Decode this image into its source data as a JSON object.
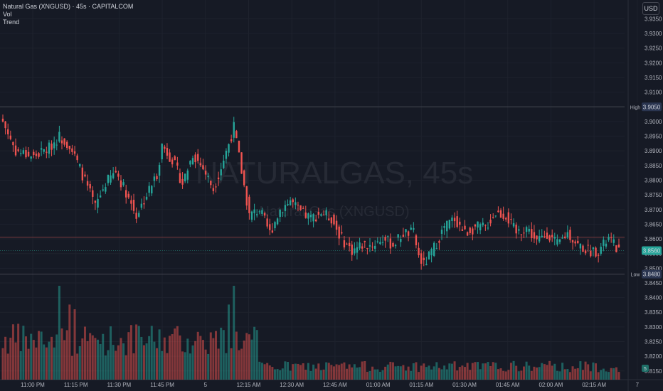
{
  "legend": {
    "symbol": "Natural Gas (XNGUSD) · 45s · CAPITALCOM",
    "vol": "Vol",
    "trend": "Trend"
  },
  "currency_button": "USD",
  "watermark": {
    "name": "NATURALGAS, 45s",
    "sub": "Natural Gas (XNGUSD)"
  },
  "colors": {
    "background": "#161a25",
    "up": "#26a69a",
    "down": "#ef5350",
    "grid": "#1e222d",
    "text": "#b2b5be"
  },
  "chart_data": {
    "type": "candlestick",
    "y_ticks": [
      "3.9350",
      "3.9300",
      "3.9250",
      "3.9200",
      "3.9150",
      "3.9100",
      "3.9050",
      "3.9000",
      "3.8950",
      "3.8900",
      "3.8850",
      "3.8800",
      "3.8750",
      "3.8700",
      "3.8650",
      "3.8600",
      "3.8550",
      "3.8500",
      "3.8450",
      "3.8400",
      "3.8350",
      "3.8300",
      "3.8250",
      "3.8200",
      "3.8150"
    ],
    "ylim": [
      3.8135,
      3.9385
    ],
    "x_ticks": [
      "11:00 PM",
      "11:15 PM",
      "11:30 PM",
      "11:45 PM",
      "5",
      "12:15 AM",
      "12:30 AM",
      "12:45 AM",
      "01:00 AM",
      "01:15 AM",
      "01:30 AM",
      "01:45 AM",
      "02:00 AM",
      "02:15 AM",
      "7"
    ],
    "high": {
      "label": "High",
      "value": "3.9050"
    },
    "low": {
      "label": "Low",
      "value": "3.8480"
    },
    "last": {
      "value": "3.8560"
    },
    "volume_badge": "5",
    "reference_line": 3.8606,
    "anchors": [
      [
        0,
        3.9
      ],
      [
        5,
        3.89
      ],
      [
        12,
        3.888
      ],
      [
        18,
        3.891
      ],
      [
        22,
        3.895
      ],
      [
        26,
        3.892
      ],
      [
        30,
        3.884
      ],
      [
        36,
        3.871
      ],
      [
        40,
        3.879
      ],
      [
        44,
        3.883
      ],
      [
        48,
        3.876
      ],
      [
        52,
        3.868
      ],
      [
        56,
        3.875
      ],
      [
        60,
        3.882
      ],
      [
        62,
        3.892
      ],
      [
        66,
        3.887
      ],
      [
        70,
        3.879
      ],
      [
        74,
        3.889
      ],
      [
        78,
        3.884
      ],
      [
        82,
        3.877
      ],
      [
        86,
        3.887
      ],
      [
        90,
        3.898
      ],
      [
        93,
        3.883
      ],
      [
        96,
        3.868
      ],
      [
        100,
        3.87
      ],
      [
        104,
        3.862
      ],
      [
        108,
        3.87
      ],
      [
        112,
        3.873
      ],
      [
        116,
        3.869
      ],
      [
        120,
        3.867
      ],
      [
        124,
        3.869
      ],
      [
        128,
        3.867
      ],
      [
        132,
        3.86
      ],
      [
        136,
        3.856
      ],
      [
        140,
        3.858
      ],
      [
        144,
        3.858
      ],
      [
        148,
        3.86
      ],
      [
        152,
        3.858
      ],
      [
        156,
        3.862
      ],
      [
        160,
        3.862
      ],
      [
        162,
        3.854
      ],
      [
        164,
        3.851
      ],
      [
        168,
        3.857
      ],
      [
        172,
        3.864
      ],
      [
        176,
        3.867
      ],
      [
        180,
        3.862
      ],
      [
        184,
        3.864
      ],
      [
        188,
        3.864
      ],
      [
        192,
        3.869
      ],
      [
        196,
        3.868
      ],
      [
        200,
        3.862
      ],
      [
        204,
        3.864
      ],
      [
        208,
        3.859
      ],
      [
        212,
        3.862
      ],
      [
        216,
        3.858
      ],
      [
        220,
        3.862
      ],
      [
        224,
        3.858
      ],
      [
        228,
        3.856
      ],
      [
        232,
        3.856
      ],
      [
        236,
        3.86
      ],
      [
        240,
        3.856
      ]
    ]
  }
}
